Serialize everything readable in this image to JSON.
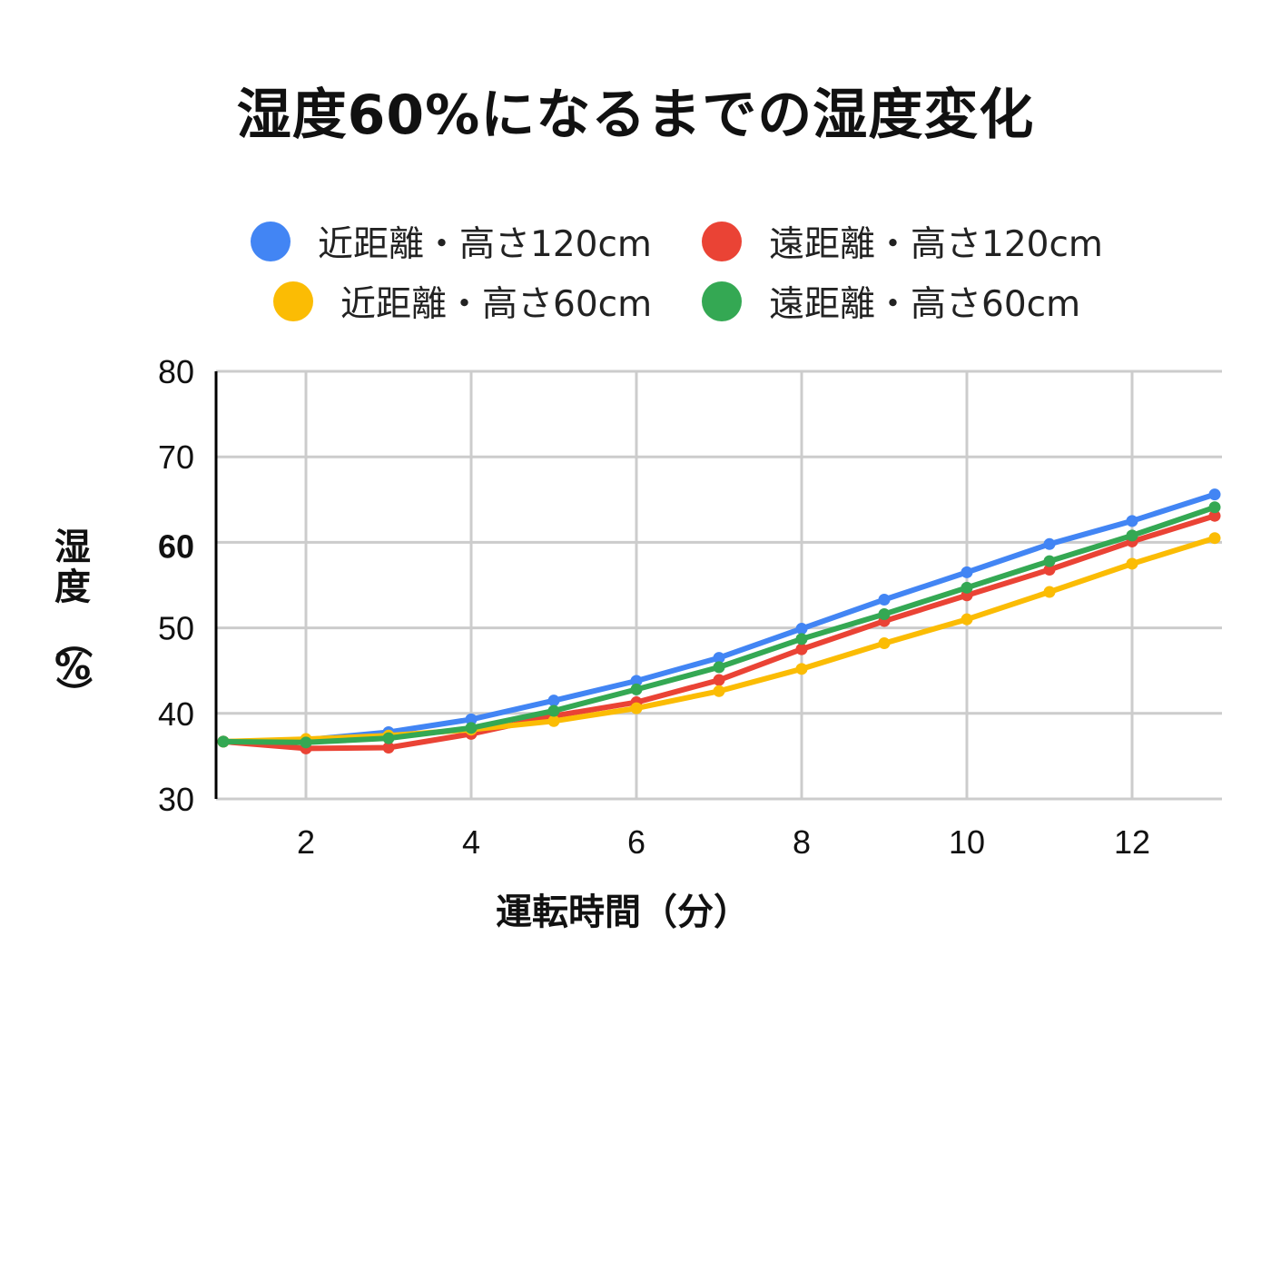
{
  "chart_data": {
    "type": "line",
    "title": "湿度60%になるまでの湿度変化",
    "xlabel": "運転時間（分）",
    "ylabel": "湿度（%）",
    "xlim": [
      1,
      13
    ],
    "ylim": [
      30,
      80
    ],
    "x": [
      1,
      2,
      3,
      4,
      5,
      6,
      7,
      8,
      9,
      10,
      11,
      12,
      13
    ],
    "x_ticks": [
      2,
      4,
      6,
      8,
      10,
      12
    ],
    "y_ticks": [
      30,
      40,
      50,
      60,
      70,
      80
    ],
    "highlight_tick": {
      "value": 60,
      "color": "#FF0000"
    },
    "grid": true,
    "legend_position": "top",
    "series": [
      {
        "name": "近距離・高さ120cm",
        "color": "#4285F4",
        "values": [
          36.7,
          36.9,
          37.8,
          39.3,
          41.5,
          43.8,
          46.5,
          49.9,
          53.3,
          56.5,
          59.8,
          62.5,
          65.6
        ]
      },
      {
        "name": "遠距離・高さ120cm",
        "color": "#EA4335",
        "values": [
          36.7,
          35.9,
          36.0,
          37.6,
          39.7,
          41.3,
          43.9,
          47.5,
          50.8,
          53.8,
          56.8,
          60.1,
          63.1
        ]
      },
      {
        "name": "近距離・高さ60cm",
        "color": "#FBBC04",
        "values": [
          36.7,
          37.0,
          37.4,
          38.1,
          39.1,
          40.6,
          42.6,
          45.2,
          48.2,
          51.0,
          54.2,
          57.5,
          60.5
        ]
      },
      {
        "name": "遠距離・高さ60cm",
        "color": "#34A853",
        "values": [
          36.7,
          36.6,
          37.1,
          38.3,
          40.3,
          42.8,
          45.4,
          48.7,
          51.6,
          54.7,
          57.8,
          60.8,
          64.1
        ]
      }
    ]
  }
}
